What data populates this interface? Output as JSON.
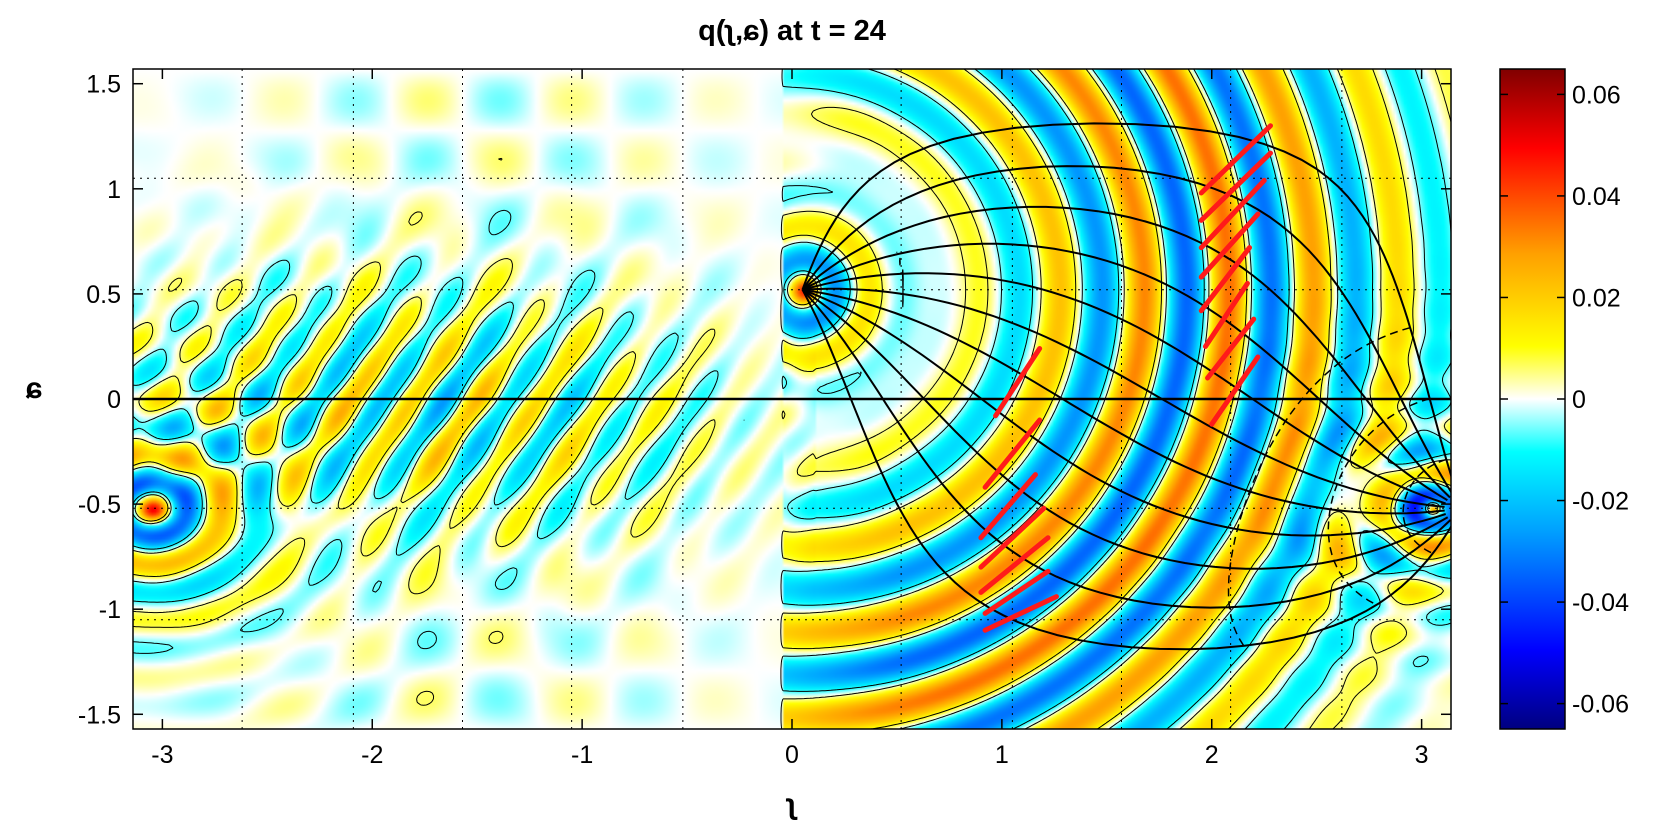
{
  "chart_data": {
    "type": "heatmap",
    "title": "q(ʅ,ɕ) at t = 24",
    "xlabel": "ʅ",
    "ylabel": "ɕ",
    "xlim": [
      -3.14,
      3.14
    ],
    "ylim": [
      -1.57,
      1.57
    ],
    "x_ticks": [
      -3,
      -2,
      -1,
      0,
      1,
      2,
      3
    ],
    "y_ticks": [
      -1.5,
      -1,
      -0.5,
      0,
      0.5,
      1,
      1.5
    ],
    "x_tick_labels": [
      "-3",
      "-2",
      "-1",
      "0",
      "1",
      "2",
      "3"
    ],
    "y_tick_labels": [
      "-1.5",
      "-1",
      "-0.5",
      "0",
      "0.5",
      "1",
      "1.5"
    ],
    "grid": "dotted",
    "colorbar": {
      "range": [
        -0.065,
        0.065
      ],
      "ticks": [
        0.06,
        0.04,
        0.02,
        0,
        -0.02,
        -0.04,
        -0.06
      ],
      "tick_labels": [
        "0.06",
        "0.04",
        "0.02",
        "0",
        "-0.02",
        "-0.04",
        "-0.06"
      ],
      "colormap": "jet-white-center"
    },
    "sources": [
      {
        "x": 0.05,
        "y": 0.52,
        "kind": "point-source"
      },
      {
        "x": 3.05,
        "y": -0.52,
        "kind": "antipode"
      },
      {
        "x": -3.05,
        "y": -0.52,
        "kind": "antipode-wrap"
      }
    ],
    "equator_y": 0,
    "red_segments": [
      {
        "x1": 1.95,
        "y1": 0.98,
        "x2": 2.28,
        "y2": 1.3
      },
      {
        "x1": 1.95,
        "y1": 0.85,
        "x2": 2.28,
        "y2": 1.17
      },
      {
        "x1": 1.95,
        "y1": 0.72,
        "x2": 2.25,
        "y2": 1.04
      },
      {
        "x1": 1.95,
        "y1": 0.58,
        "x2": 2.22,
        "y2": 0.88
      },
      {
        "x1": 1.95,
        "y1": 0.42,
        "x2": 2.18,
        "y2": 0.72
      },
      {
        "x1": 1.97,
        "y1": 0.25,
        "x2": 2.17,
        "y2": 0.55
      },
      {
        "x1": 1.98,
        "y1": 0.1,
        "x2": 2.2,
        "y2": 0.38
      },
      {
        "x1": 2.0,
        "y1": -0.12,
        "x2": 2.22,
        "y2": 0.2
      },
      {
        "x1": 0.97,
        "y1": -0.08,
        "x2": 1.18,
        "y2": 0.24
      },
      {
        "x1": 0.92,
        "y1": -0.42,
        "x2": 1.18,
        "y2": -0.1
      },
      {
        "x1": 0.9,
        "y1": -0.66,
        "x2": 1.16,
        "y2": -0.36
      },
      {
        "x1": 0.9,
        "y1": -0.8,
        "x2": 1.2,
        "y2": -0.52
      },
      {
        "x1": 0.9,
        "y1": -0.92,
        "x2": 1.22,
        "y2": -0.66
      },
      {
        "x1": 0.92,
        "y1": -1.02,
        "x2": 1.22,
        "y2": -0.82
      },
      {
        "x1": 0.92,
        "y1": -1.1,
        "x2": 1.26,
        "y2": -0.94
      }
    ]
  }
}
